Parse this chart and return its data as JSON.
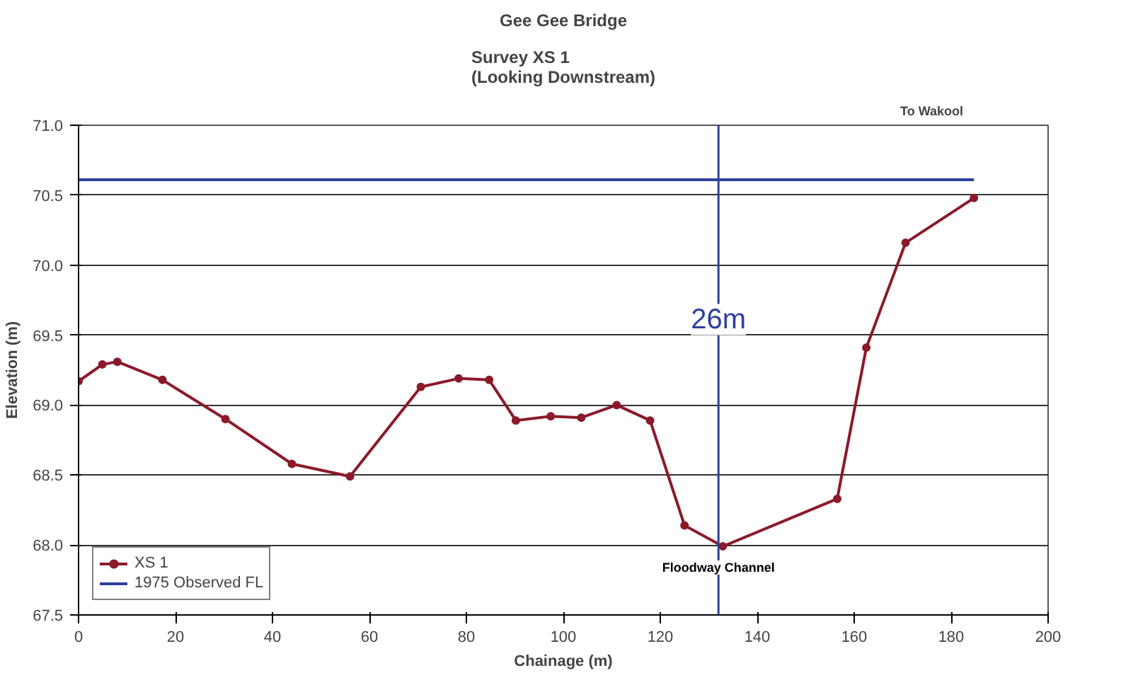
{
  "chart_data": {
    "type": "line",
    "title": "Gee Gee Bridge",
    "subtitle": "Survey XS 1\n(Looking Downstream)",
    "xlabel": "Chainage (m)",
    "ylabel": "Elevation (m)",
    "series": [
      {
        "name": "XS 1",
        "color": "#8b1a2b",
        "marker": "circle",
        "x": [
          0,
          4.9,
          8,
          17.3,
          30.3,
          44,
          56,
          70.6,
          78.4,
          84.7,
          90.2,
          97.4,
          103.7,
          111,
          117.9,
          125,
          132.9,
          156.5,
          162.5,
          170.6,
          184.7
        ],
        "values": [
          69.17,
          69.29,
          69.31,
          69.18,
          68.9,
          68.58,
          68.49,
          69.13,
          69.19,
          69.18,
          68.89,
          68.92,
          68.91,
          69.0,
          68.89,
          68.14,
          67.99,
          68.33,
          69.41,
          70.16,
          70.48
        ]
      },
      {
        "name": "1975 Observed FL",
        "color": "#2e3f9e",
        "x": [
          0,
          184.7
        ],
        "values": [
          70.61,
          70.61
        ]
      }
    ],
    "xlim": [
      0,
      200
    ],
    "xticks": [
      0,
      20,
      40,
      60,
      80,
      100,
      120,
      140,
      160,
      180,
      200
    ],
    "ylim": [
      67.5,
      71.0
    ],
    "yticks": [
      {
        "value": 67.5,
        "label": "67.5"
      },
      {
        "value": 68.0,
        "label": "68.0"
      },
      {
        "value": 68.5,
        "label": "68.5"
      },
      {
        "value": 69.0,
        "label": "69.0"
      },
      {
        "value": 69.5,
        "label": "69.5"
      },
      {
        "value": 70.0,
        "label": "70.0"
      },
      {
        "value": 70.5,
        "label": "70.5"
      },
      {
        "value": 71.0,
        "label": "71.0"
      }
    ],
    "grid": "y",
    "legend": "bottom left",
    "ref_lines": [
      {
        "axis": "x",
        "value": 132,
        "color": "#2e3f9e"
      }
    ],
    "annotations": [
      "To Wakool",
      {
        "text": "Floodway Channel",
        "x": 132,
        "y": 67.99
      },
      {
        "text": "26m",
        "x": 132,
        "y": 69.5
      }
    ]
  }
}
